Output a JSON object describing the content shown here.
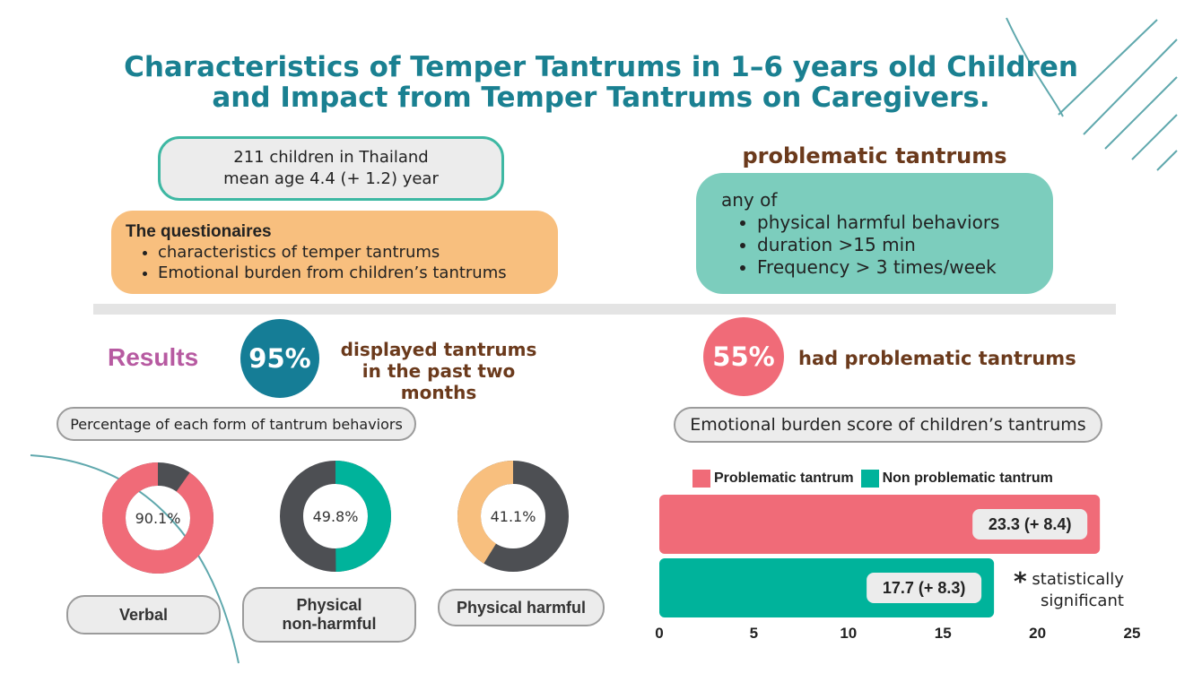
{
  "title_line1": "Characteristics of Temper Tantrums in 1–6 years old Children",
  "title_line2": "and Impact from Temper Tantrums on Caregivers.",
  "sample": {
    "line1": "211 children in Thailand",
    "line2": "mean age 4.4 (+ 1.2) year"
  },
  "questionnaires": {
    "title": "The questionaires",
    "items": [
      "characteristics of temper tantrums",
      "Emotional burden from children’s tantrums"
    ]
  },
  "problematic": {
    "title": "problematic tantrums",
    "intro": "any of",
    "items": [
      "physical harmful behaviors",
      "duration >15 min",
      "Frequency > 3 times/week"
    ]
  },
  "results": {
    "label": "Results",
    "displayed_pct": "95%",
    "displayed_text_1": "displayed tantrums",
    "displayed_text_2": "in the past two months",
    "problematic_pct": "55%",
    "problematic_text": "had problematic tantrums"
  },
  "percentage_title": "Percentage of each form of tantrum behaviors",
  "emotional_title": "Emotional burden score of children’s tantrums",
  "significance": {
    "line1": "statistically",
    "line2": "significant"
  },
  "colors": {
    "teal": "#00b39b",
    "pink": "#f06b78",
    "orange": "#f8bf7e",
    "dark": "#4d4f53",
    "title": "#1a8091"
  },
  "chart_data": [
    {
      "type": "pie",
      "donut": true,
      "slices": [
        {
          "label": "Verbal",
          "value": 90.1,
          "display": "90.1%",
          "color": "#f06b78",
          "pill_line1": "Verbal",
          "pill_line2": ""
        },
        {
          "label": "Physical non-harmful",
          "value": 49.8,
          "display": "49.8%",
          "color": "#00b39b",
          "pill_line1": "Physical",
          "pill_line2": "non-harmful"
        },
        {
          "label": "Physical harmful",
          "value": 41.1,
          "display": "41.1%",
          "color": "#f8bf7e",
          "pill_line1": "Physical harmful",
          "pill_line2": ""
        }
      ],
      "remainder_color": "#4d4f53"
    },
    {
      "type": "bar",
      "orientation": "horizontal",
      "categories": [
        "Problematic tantrum",
        "Non problematic tantrum"
      ],
      "series": [
        {
          "name": "Problematic tantrum",
          "value": 23.3,
          "label": "23.3 (+ 8.4)",
          "color": "#f06b78"
        },
        {
          "name": "Non problematic tantrum",
          "value": 17.7,
          "label": "17.7 (+ 8.3)",
          "color": "#00b39b"
        }
      ],
      "xlim": [
        0,
        25
      ],
      "xticks": [
        0,
        5,
        10,
        15,
        20,
        25
      ],
      "grid": false,
      "legend": "top"
    }
  ]
}
